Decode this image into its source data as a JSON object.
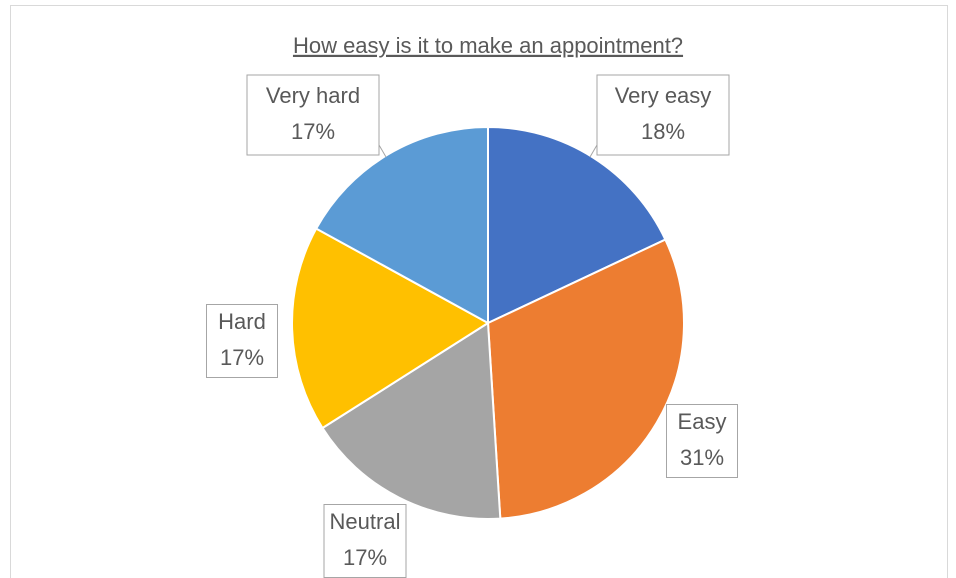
{
  "chart_data": {
    "type": "pie",
    "title": "How easy is it to make an appointment?",
    "categories": [
      "Very easy",
      "Easy",
      "Neutral",
      "Hard",
      "Very hard"
    ],
    "values": [
      18,
      31,
      17,
      17,
      17
    ],
    "value_labels": [
      "18%",
      "31%",
      "17%",
      "17%",
      "17%"
    ],
    "colors": [
      "#4472c4",
      "#ed7d31",
      "#a5a5a5",
      "#ffc000",
      "#5b9bd5"
    ]
  }
}
